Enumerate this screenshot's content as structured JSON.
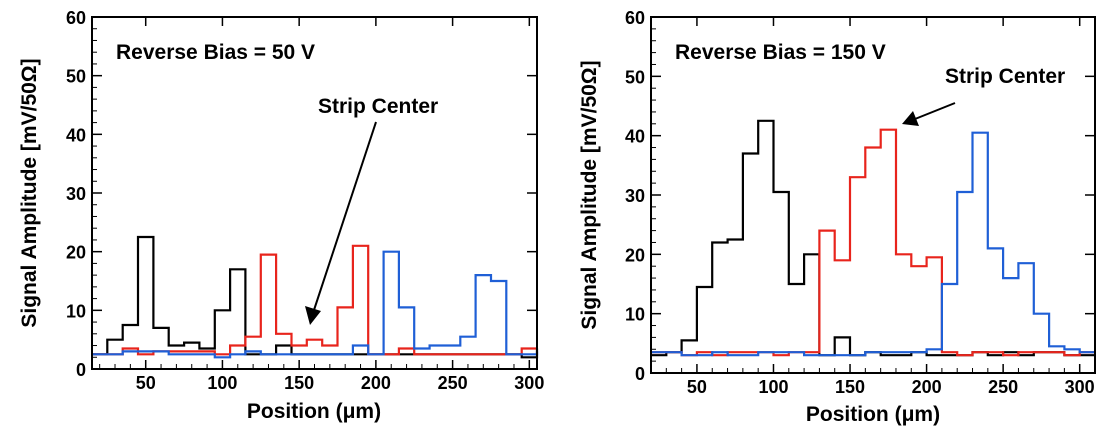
{
  "chart_data": [
    {
      "type": "line",
      "step": true,
      "annotation": "Reverse Bias = 50 V",
      "callout": "Strip Center",
      "xlabel": "Position (μm)",
      "ylabel": "Signal Amplitude [mV/50Ω]",
      "xlim": [
        15,
        305
      ],
      "ylim": [
        0,
        60
      ],
      "xticks": [
        50,
        100,
        150,
        200,
        250,
        300
      ],
      "yticks": [
        0,
        10,
        20,
        30,
        40,
        50,
        60
      ],
      "grid": false,
      "x": [
        15,
        25,
        35,
        45,
        55,
        65,
        75,
        85,
        95,
        105,
        115,
        125,
        135,
        145,
        155,
        165,
        175,
        185,
        195,
        205,
        215,
        225,
        235,
        245,
        255,
        265,
        275,
        285,
        295,
        305
      ],
      "series": [
        {
          "color": "#000000",
          "values": [
            2.5,
            5,
            7.5,
            22.5,
            7,
            4,
            4.5,
            3.5,
            10,
            17,
            2.5,
            2.5,
            4,
            2.5,
            2.5,
            2.5,
            2.5,
            2.5,
            2.5,
            2.5,
            2.5,
            2.5,
            2.5,
            2.5,
            2.5,
            2.5,
            2.5,
            2.5,
            2,
            3.5
          ]
        },
        {
          "color": "#e8241c",
          "values": [
            2.5,
            2.5,
            3.5,
            2.5,
            3,
            3,
            3,
            3,
            2.5,
            4,
            5.5,
            19.5,
            6,
            4,
            5,
            4,
            10.5,
            21,
            2.5,
            2.5,
            3.5,
            2.5,
            2.5,
            2.5,
            2.5,
            2.5,
            2.5,
            2.5,
            3.5,
            3.5
          ]
        },
        {
          "color": "#1f5fd6",
          "values": [
            2.5,
            2.5,
            3,
            3,
            3,
            2.5,
            2.5,
            2.5,
            2,
            2.5,
            3,
            2.5,
            2.5,
            2.5,
            2.5,
            2.5,
            2.5,
            4,
            2.5,
            20,
            10.5,
            3.5,
            4,
            4,
            5.5,
            16,
            15,
            2.5,
            2.5,
            3
          ]
        }
      ]
    },
    {
      "type": "line",
      "step": true,
      "annotation": "Reverse Bias = 150 V",
      "callout": "Strip Center",
      "xlabel": "Position (μm)",
      "ylabel": "Signal Amplitude [mV/50Ω]",
      "xlim": [
        20,
        310
      ],
      "ylim": [
        0,
        60
      ],
      "xticks": [
        50,
        100,
        150,
        200,
        250,
        300
      ],
      "yticks": [
        0,
        10,
        20,
        30,
        40,
        50,
        60
      ],
      "grid": false,
      "x": [
        20,
        30,
        40,
        50,
        60,
        70,
        80,
        90,
        100,
        110,
        120,
        130,
        140,
        150,
        160,
        170,
        180,
        190,
        200,
        210,
        220,
        230,
        240,
        250,
        260,
        270,
        280,
        290,
        300,
        310
      ],
      "series": [
        {
          "color": "#000000",
          "values": [
            3,
            3.5,
            5.5,
            14.5,
            22,
            22.5,
            37,
            42.5,
            30.5,
            15,
            20,
            3,
            6,
            3,
            3.5,
            3,
            3,
            3.5,
            3,
            3,
            3,
            3.5,
            3,
            3.5,
            3,
            3.5,
            3.5,
            3,
            3,
            3
          ]
        },
        {
          "color": "#e8241c",
          "values": [
            3.5,
            3.5,
            3,
            3.5,
            3,
            3.5,
            3.5,
            3.5,
            3,
            3.5,
            3.5,
            24,
            19,
            33,
            38,
            41,
            20,
            18,
            19.5,
            3.5,
            3,
            3.5,
            3.5,
            3,
            3.5,
            3.5,
            3.5,
            3,
            3.5,
            3.5
          ]
        },
        {
          "color": "#1f5fd6",
          "values": [
            3.5,
            3.5,
            3,
            3,
            3.5,
            3,
            3,
            3.5,
            3.5,
            3.5,
            3,
            3,
            3,
            3,
            3.5,
            3.5,
            3.5,
            3.5,
            4,
            15,
            30.5,
            40.5,
            21,
            16,
            18.5,
            10,
            4.5,
            4,
            3.5,
            3.5
          ]
        }
      ]
    }
  ]
}
